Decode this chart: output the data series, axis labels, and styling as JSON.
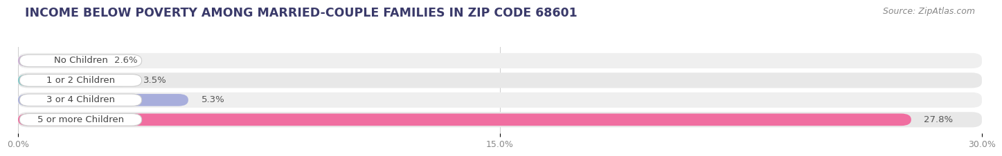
{
  "title": "INCOME BELOW POVERTY AMONG MARRIED-COUPLE FAMILIES IN ZIP CODE 68601",
  "source": "Source: ZipAtlas.com",
  "categories": [
    "No Children",
    "1 or 2 Children",
    "3 or 4 Children",
    "5 or more Children"
  ],
  "values": [
    2.6,
    3.5,
    5.3,
    27.8
  ],
  "bar_colors": [
    "#caadd4",
    "#7ec8c8",
    "#a8aedc",
    "#f06ea0"
  ],
  "xlim": [
    0,
    30.0
  ],
  "xticks": [
    0.0,
    15.0,
    30.0
  ],
  "xtick_labels": [
    "0.0%",
    "15.0%",
    "30.0%"
  ],
  "title_fontsize": 12.5,
  "source_fontsize": 9,
  "label_fontsize": 9.5,
  "value_fontsize": 9.5,
  "background_color": "#ffffff",
  "bar_height": 0.62,
  "row_bg_colors": [
    "#efefef",
    "#e8e8e8",
    "#efefef",
    "#e8e8e8"
  ],
  "label_text_color": "#444444",
  "value_text_color": "#555555",
  "label_badge_color": "#ffffff",
  "grid_color": "#cccccc",
  "title_color": "#3a3a6a"
}
